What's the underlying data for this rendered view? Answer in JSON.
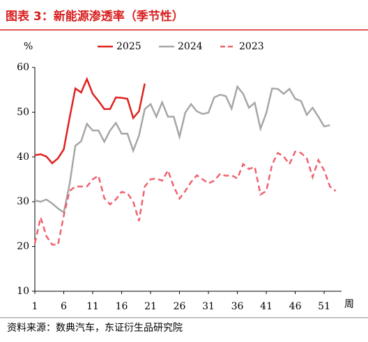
{
  "chart_data": {
    "type": "line",
    "title": "图表 3：新能源渗透率（季节性）",
    "y_label": "%",
    "x_label": "周",
    "source": "资料来源：数典汽车，东证衍生品研究院",
    "x": [
      1,
      2,
      3,
      4,
      5,
      6,
      7,
      8,
      9,
      10,
      11,
      12,
      13,
      14,
      15,
      16,
      17,
      18,
      19,
      20,
      21,
      22,
      23,
      24,
      25,
      26,
      27,
      28,
      29,
      30,
      31,
      32,
      33,
      34,
      35,
      36,
      37,
      38,
      39,
      40,
      41,
      42,
      43,
      44,
      45,
      46,
      47,
      48,
      49,
      50,
      51,
      52,
      53
    ],
    "xlim": [
      1,
      54
    ],
    "xticks": [
      1,
      6,
      11,
      16,
      21,
      26,
      31,
      36,
      41,
      46,
      51
    ],
    "ylim": [
      10,
      60
    ],
    "yticks": [
      10,
      20,
      30,
      40,
      50,
      60
    ],
    "series": [
      {
        "name": "2025",
        "color": "#e02020",
        "style": "solid",
        "values": [
          40.4,
          40.6,
          40.1,
          38.6,
          39.7,
          41.7,
          48.7,
          55.3,
          54.4,
          57.4,
          54.1,
          52.5,
          50.7,
          50.7,
          53.3,
          53.2,
          53.0,
          48.7,
          50.2,
          56.4,
          null,
          null,
          null,
          null,
          null,
          null,
          null,
          null,
          null,
          null,
          null,
          null,
          null,
          null,
          null,
          null,
          null,
          null,
          null,
          null,
          null,
          null,
          null,
          null,
          null,
          null,
          null,
          null,
          null,
          null,
          null,
          null,
          null
        ]
      },
      {
        "name": "2024",
        "color": "#a6a6a6",
        "style": "solid",
        "values": [
          30.3,
          30.0,
          30.5,
          29.6,
          28.5,
          27.6,
          33.9,
          42.5,
          43.5,
          47.4,
          45.9,
          45.9,
          43.4,
          45.9,
          47.6,
          45.2,
          45.2,
          41.4,
          44.8,
          50.7,
          51.8,
          49.0,
          52.2,
          49.0,
          49.0,
          44.5,
          49.9,
          51.8,
          50.2,
          49.6,
          49.9,
          53.3,
          53.9,
          53.6,
          50.8,
          55.7,
          54.1,
          51.0,
          52.1,
          46.3,
          49.8,
          55.3,
          55.2,
          54.1,
          55.2,
          53.0,
          52.5,
          49.4,
          51.0,
          49.0,
          46.8,
          47.1,
          null
        ]
      },
      {
        "name": "2023",
        "color": "#f0616e",
        "style": "dashed",
        "values": [
          20.7,
          26.5,
          22.3,
          20.4,
          20.4,
          26.9,
          32.4,
          33.4,
          33.4,
          33.4,
          35.0,
          35.8,
          30.8,
          29.4,
          30.5,
          32.2,
          31.9,
          30.0,
          25.7,
          33.4,
          35.0,
          35.2,
          34.7,
          37.0,
          33.4,
          30.7,
          32.4,
          34.4,
          35.9,
          35.0,
          34.1,
          34.7,
          36.2,
          35.8,
          35.9,
          35.2,
          38.4,
          37.3,
          37.8,
          31.6,
          32.4,
          38.3,
          40.9,
          40.1,
          38.4,
          41.2,
          40.9,
          39.7,
          35.5,
          39.3,
          37.0,
          33.4,
          32.4
        ]
      }
    ]
  }
}
